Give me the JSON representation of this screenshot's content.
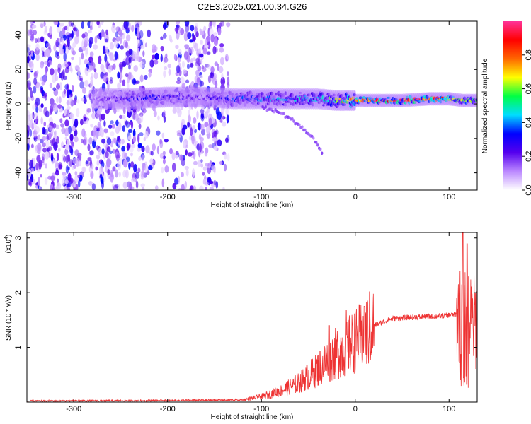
{
  "title": "C2E3.2025.021.00.34.G26",
  "colors": {
    "snr_line": "#ee3333",
    "axis": "#000000"
  },
  "chart_data": [
    {
      "type": "heatmap",
      "xlabel": "Height of straight line (km)",
      "ylabel": "Frequency (Hz)",
      "xlim": [
        -350,
        130
      ],
      "ylim": [
        -50,
        48
      ],
      "xticks": [
        -300,
        -200,
        -100,
        0,
        100
      ],
      "yticks": [
        -40,
        -20,
        0,
        20,
        40
      ],
      "colorbar": {
        "label": "Normalized spectral amplitude",
        "range": [
          0,
          1
        ],
        "ticks": [
          "0.0",
          "0.2",
          "0.4",
          "0.6",
          "0.8"
        ],
        "tick_values": [
          0.0,
          0.2,
          0.4,
          0.6,
          0.8
        ],
        "colormap": [
          "#ffffff",
          "#bb88ff",
          "#5500ee",
          "#0000ff",
          "#00ddff",
          "#00ff44",
          "#ffff00",
          "#ff6600",
          "#ff0000",
          "#ff3399"
        ]
      },
      "noise_region_x": [
        -350,
        -135
      ],
      "signal_track": [
        {
          "x": -280,
          "y": 3,
          "amp": 0.15
        },
        {
          "x": -240,
          "y": 3,
          "amp": 0.3
        },
        {
          "x": -200,
          "y": 4,
          "amp": 0.3
        },
        {
          "x": -160,
          "y": 4,
          "amp": 0.22
        },
        {
          "x": -130,
          "y": 3,
          "amp": 0.35
        },
        {
          "x": -100,
          "y": 3,
          "amp": 0.4
        },
        {
          "x": -70,
          "y": 3,
          "amp": 0.45
        },
        {
          "x": -40,
          "y": 3,
          "amp": 0.45
        },
        {
          "x": -20,
          "y": 2,
          "amp": 0.6
        },
        {
          "x": 0,
          "y": 2,
          "amp": 0.85
        },
        {
          "x": 20,
          "y": 2,
          "amp": 0.95
        },
        {
          "x": 50,
          "y": 2,
          "amp": 0.9
        },
        {
          "x": 80,
          "y": 3,
          "amp": 0.9
        },
        {
          "x": 100,
          "y": 3,
          "amp": 0.8
        },
        {
          "x": 115,
          "y": 2,
          "amp": 0.7
        },
        {
          "x": 130,
          "y": 2,
          "amp": 0.6
        }
      ],
      "side_branch": [
        {
          "x": -100,
          "y": -2
        },
        {
          "x": -80,
          "y": -5
        },
        {
          "x": -60,
          "y": -12
        },
        {
          "x": -45,
          "y": -20
        },
        {
          "x": -35,
          "y": -28
        }
      ]
    },
    {
      "type": "line",
      "xlabel": "Height of straight line (km)",
      "ylabel": "SNR (10 * v/v)",
      "yexponent": "(x10",
      "yexponent_power": "4",
      "yexponent_close": ")",
      "xlim": [
        -350,
        130
      ],
      "ylim": [
        0,
        3.1
      ],
      "xticks": [
        -300,
        -200,
        -100,
        0,
        100
      ],
      "yticks": [
        1,
        2,
        3
      ],
      "envelope": [
        {
          "x": -350,
          "y": 0.02
        },
        {
          "x": -200,
          "y": 0.03
        },
        {
          "x": -120,
          "y": 0.04
        },
        {
          "x": -100,
          "y": 0.1
        },
        {
          "x": -80,
          "y": 0.2
        },
        {
          "x": -60,
          "y": 0.35
        },
        {
          "x": -40,
          "y": 0.6
        },
        {
          "x": -20,
          "y": 0.9
        },
        {
          "x": 0,
          "y": 1.1
        },
        {
          "x": 10,
          "y": 1.25
        },
        {
          "x": 20,
          "y": 1.4
        },
        {
          "x": 40,
          "y": 1.53
        },
        {
          "x": 60,
          "y": 1.55
        },
        {
          "x": 90,
          "y": 1.57
        },
        {
          "x": 105,
          "y": 1.6
        },
        {
          "x": 110,
          "y": 1.6
        },
        {
          "x": 118,
          "y": 1.5
        },
        {
          "x": 125,
          "y": 1.47
        },
        {
          "x": 130,
          "y": 1.47
        }
      ],
      "spike_peaks": [
        {
          "x": -28,
          "y": 1.4
        },
        {
          "x": -10,
          "y": 1.68
        },
        {
          "x": 10,
          "y": 1.75
        },
        {
          "x": 115,
          "y": 3.1
        },
        {
          "x": 119,
          "y": 2.9
        }
      ]
    }
  ]
}
